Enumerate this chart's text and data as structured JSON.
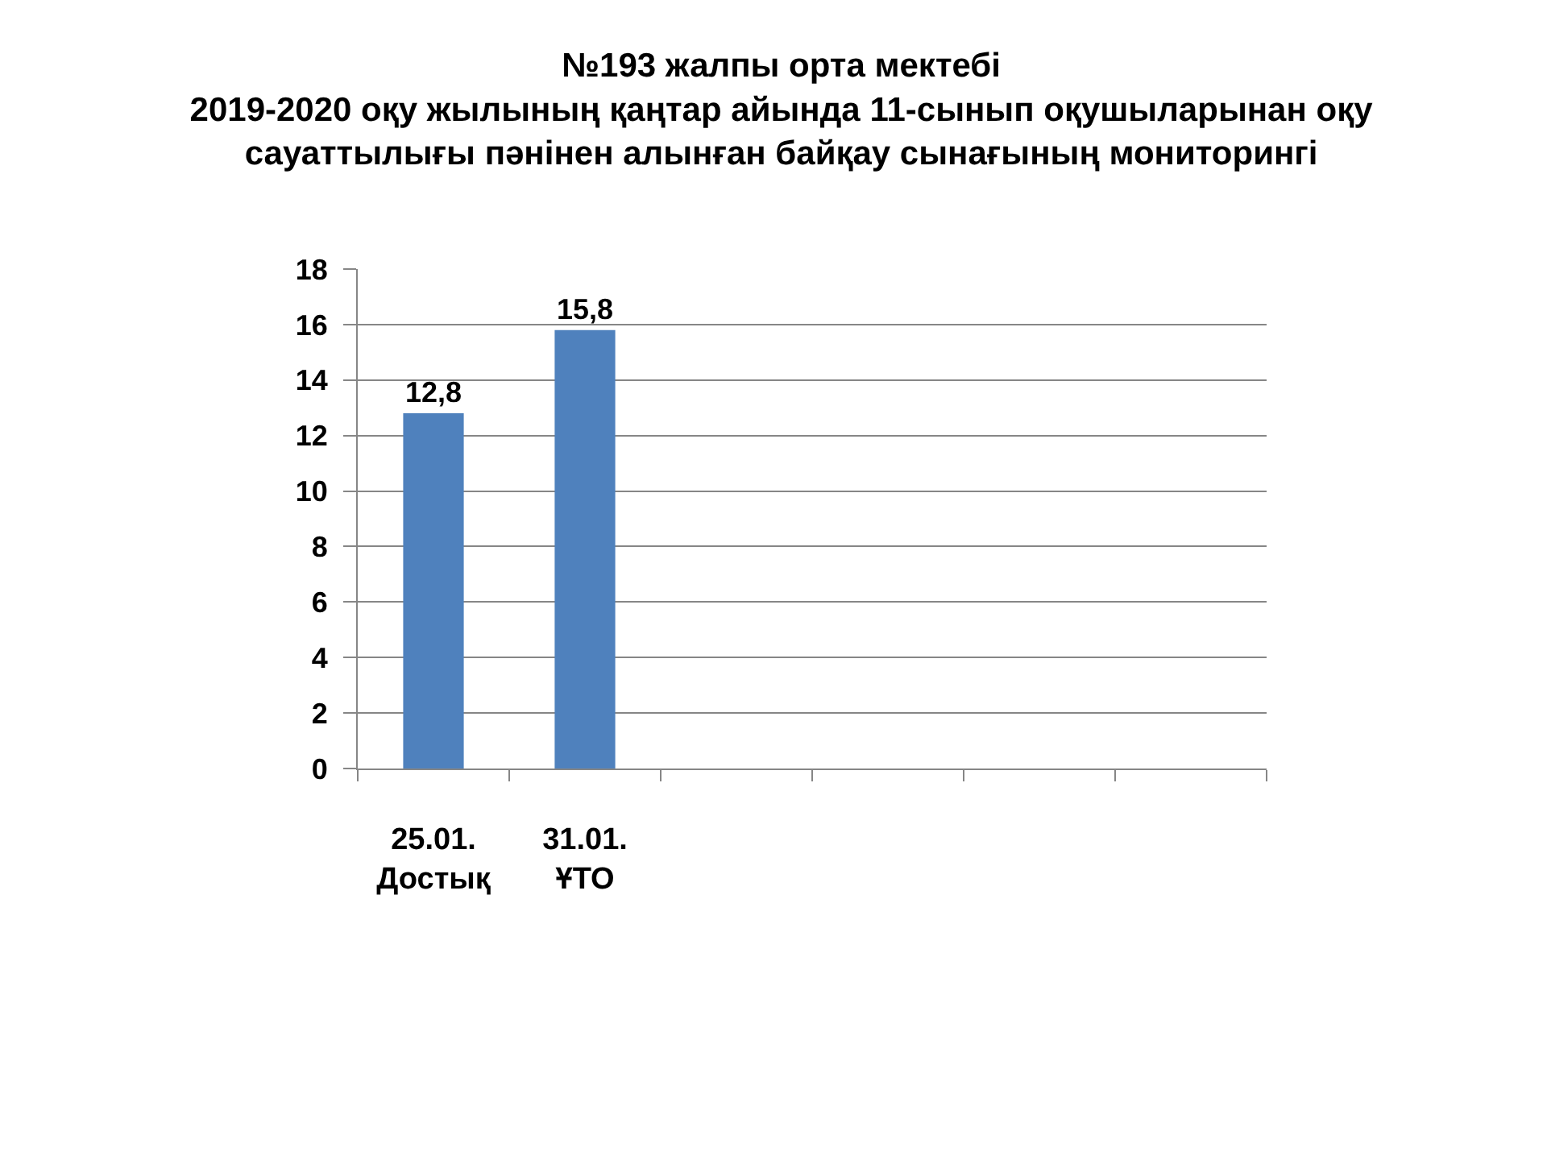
{
  "chart_data": {
    "type": "bar",
    "title": "№193 жалпы орта мектебі\n2019-2020 оқу жылының қаңтар айында 11-сынып оқушыларынан оқу\nсауаттылығы пәнінен алынған байқау сынағының мониторингі",
    "categories": [
      "25.01.\nДостық",
      "31.01.\nҰТО",
      null,
      null,
      null,
      null
    ],
    "values": [
      12.8,
      15.8,
      null,
      null,
      null,
      null
    ],
    "value_labels": [
      "12,8",
      "15,8",
      null,
      null,
      null,
      null
    ],
    "color": "#4f81bd",
    "ylim": [
      0,
      18
    ],
    "yticks": [
      0,
      2,
      4,
      6,
      8,
      10,
      12,
      14,
      16,
      18
    ],
    "grid": "y"
  }
}
